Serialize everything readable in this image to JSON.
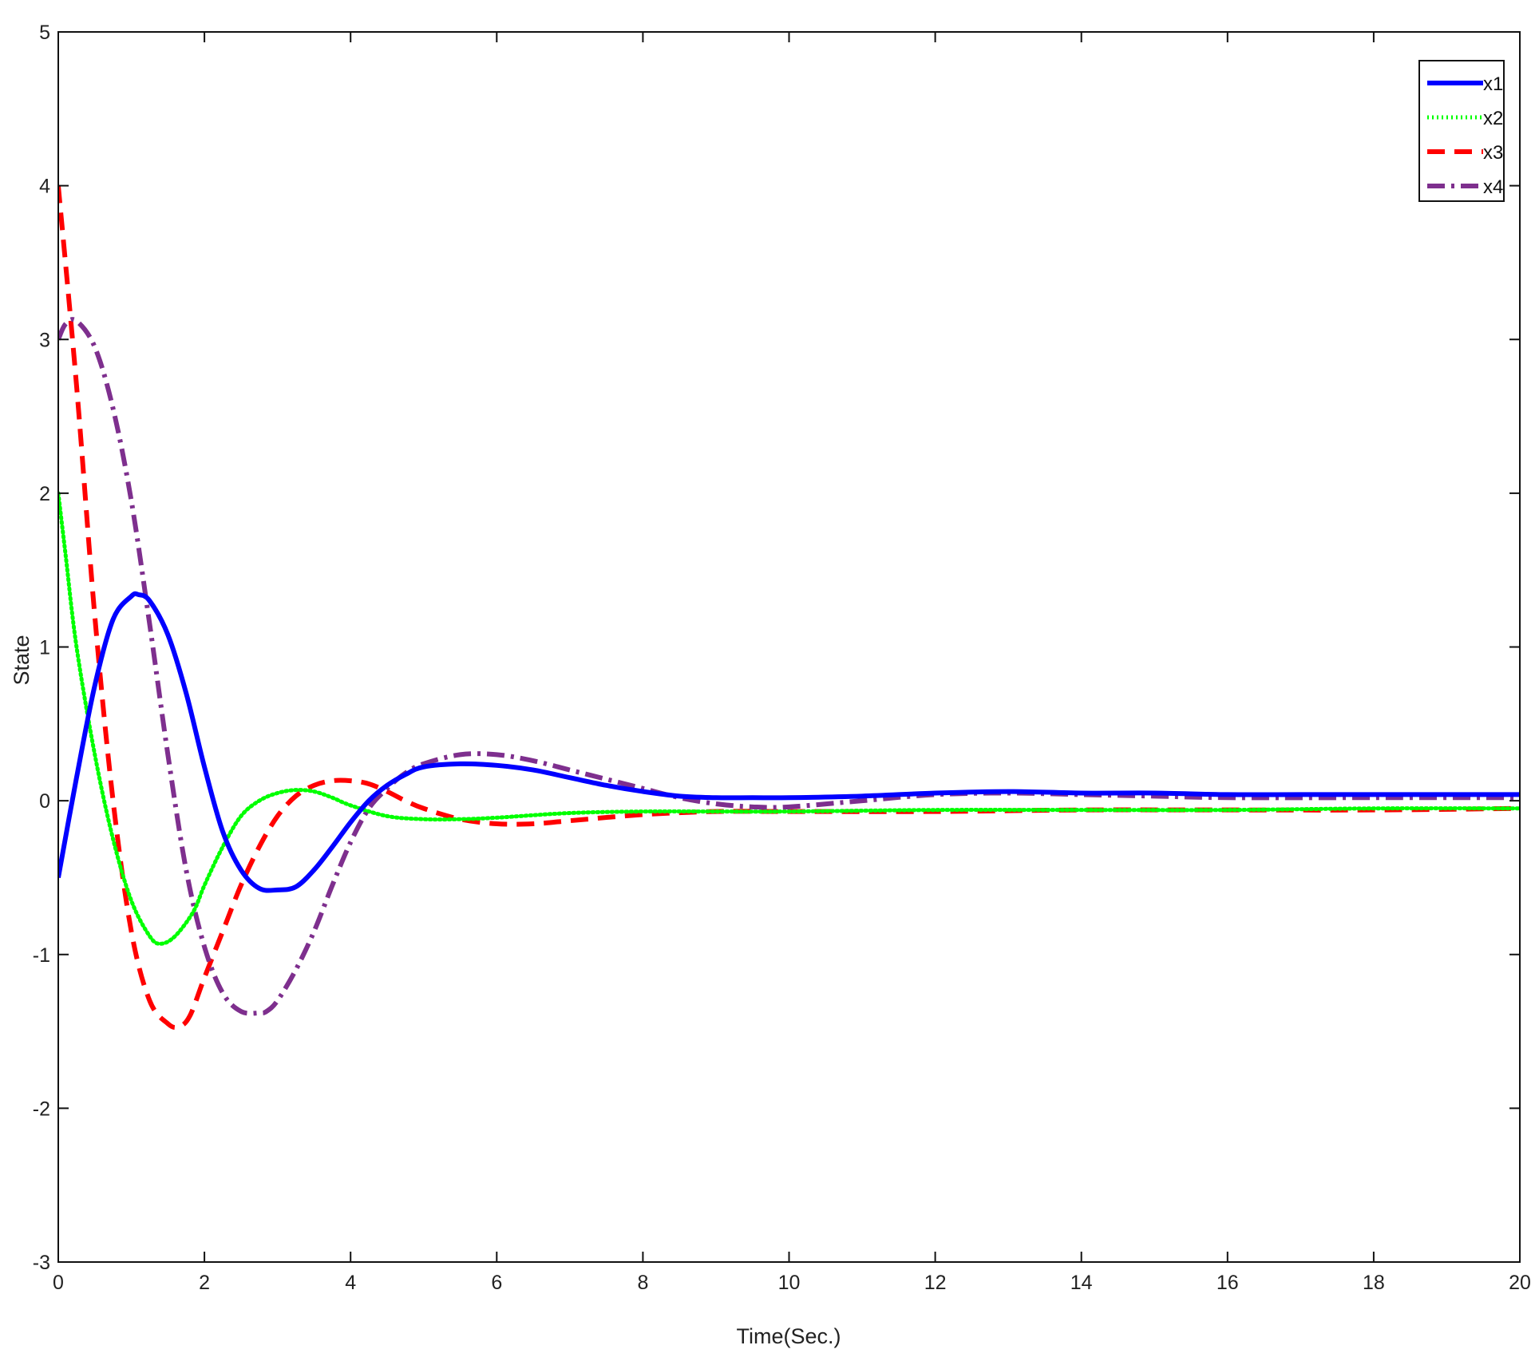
{
  "chart_data": {
    "type": "line",
    "title": "",
    "xlabel": "Time(Sec.)",
    "ylabel": "State",
    "xlim": [
      0,
      20
    ],
    "ylim": [
      -3,
      5
    ],
    "xticks": [
      0,
      2,
      4,
      6,
      8,
      10,
      12,
      14,
      16,
      18,
      20
    ],
    "yticks": [
      -3,
      -2,
      -1,
      0,
      1,
      2,
      3,
      4,
      5
    ],
    "grid": false,
    "legend_position": "top-right",
    "series": [
      {
        "name": "x1",
        "color": "#0000FF",
        "style": "solid",
        "x": [
          0,
          0.25,
          0.5,
          0.75,
          1,
          1.1,
          1.25,
          1.5,
          1.75,
          2,
          2.25,
          2.5,
          2.75,
          3,
          3.25,
          3.5,
          3.75,
          4,
          4.25,
          4.5,
          4.75,
          5,
          5.5,
          6,
          6.5,
          7,
          7.5,
          8,
          8.5,
          9,
          9.5,
          10,
          11,
          12,
          13,
          14,
          15,
          16,
          17,
          18,
          19,
          20
        ],
        "y": [
          -0.5,
          0.15,
          0.75,
          1.18,
          1.33,
          1.34,
          1.3,
          1.08,
          0.7,
          0.22,
          -0.2,
          -0.45,
          -0.57,
          -0.58,
          -0.56,
          -0.45,
          -0.3,
          -0.14,
          0.0,
          0.1,
          0.17,
          0.22,
          0.24,
          0.23,
          0.2,
          0.15,
          0.1,
          0.06,
          0.03,
          0.02,
          0.02,
          0.02,
          0.03,
          0.05,
          0.06,
          0.05,
          0.05,
          0.04,
          0.04,
          0.04,
          0.04,
          0.04
        ]
      },
      {
        "name": "x2",
        "color": "#00FF00",
        "style": "dotted",
        "x": [
          0,
          0.1,
          0.25,
          0.5,
          0.75,
          1,
          1.25,
          1.4,
          1.6,
          1.85,
          2,
          2.25,
          2.5,
          2.75,
          3,
          3.25,
          3.5,
          3.75,
          4,
          4.5,
          5,
          5.5,
          6,
          7,
          8,
          9,
          10,
          12,
          14,
          16,
          18,
          20
        ],
        "y": [
          2.0,
          1.6,
          1.0,
          0.3,
          -0.25,
          -0.65,
          -0.88,
          -0.93,
          -0.88,
          -0.72,
          -0.55,
          -0.3,
          -0.1,
          0.0,
          0.05,
          0.07,
          0.06,
          0.02,
          -0.03,
          -0.1,
          -0.12,
          -0.12,
          -0.11,
          -0.08,
          -0.07,
          -0.07,
          -0.07,
          -0.06,
          -0.06,
          -0.06,
          -0.05,
          -0.05
        ]
      },
      {
        "name": "x3",
        "color": "#FF0000",
        "style": "dashed",
        "x": [
          0,
          0.25,
          0.5,
          0.75,
          1,
          1.25,
          1.5,
          1.65,
          1.8,
          2,
          2.25,
          2.5,
          2.75,
          3,
          3.25,
          3.5,
          3.75,
          4,
          4.25,
          4.5,
          4.75,
          5,
          5.5,
          6,
          6.5,
          7,
          8,
          9,
          10,
          12,
          14,
          16,
          18,
          20
        ],
        "y": [
          4.0,
          2.7,
          1.2,
          0.0,
          -0.85,
          -1.3,
          -1.45,
          -1.47,
          -1.4,
          -1.15,
          -0.85,
          -0.55,
          -0.3,
          -0.1,
          0.03,
          0.1,
          0.13,
          0.13,
          0.11,
          0.06,
          0.0,
          -0.05,
          -0.12,
          -0.15,
          -0.15,
          -0.13,
          -0.09,
          -0.07,
          -0.07,
          -0.07,
          -0.06,
          -0.06,
          -0.06,
          -0.05
        ]
      },
      {
        "name": "x4",
        "color": "#7E2F8E",
        "style": "dashdot",
        "x": [
          0,
          0.1,
          0.25,
          0.5,
          0.75,
          1,
          1.25,
          1.5,
          1.75,
          2,
          2.25,
          2.5,
          2.75,
          2.85,
          3,
          3.25,
          3.5,
          3.75,
          4,
          4.25,
          4.5,
          4.75,
          5,
          5.5,
          6,
          6.5,
          7,
          7.5,
          8,
          8.5,
          9,
          9.5,
          10,
          11,
          12,
          13,
          14,
          15,
          16,
          18,
          20
        ],
        "y": [
          3.0,
          3.1,
          3.12,
          2.95,
          2.55,
          1.95,
          1.15,
          0.3,
          -0.45,
          -0.95,
          -1.25,
          -1.37,
          -1.38,
          -1.37,
          -1.3,
          -1.1,
          -0.85,
          -0.55,
          -0.27,
          -0.05,
          0.08,
          0.18,
          0.24,
          0.3,
          0.3,
          0.26,
          0.2,
          0.14,
          0.08,
          0.02,
          -0.02,
          -0.04,
          -0.04,
          0.0,
          0.04,
          0.05,
          0.04,
          0.03,
          0.02,
          0.02,
          0.02
        ]
      }
    ]
  }
}
